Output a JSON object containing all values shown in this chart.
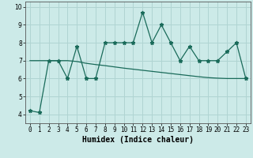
{
  "xlabel": "Humidex (Indice chaleur)",
  "x_values": [
    0,
    1,
    2,
    3,
    4,
    5,
    6,
    7,
    8,
    9,
    10,
    11,
    12,
    13,
    14,
    15,
    16,
    17,
    18,
    19,
    20,
    21,
    22,
    23
  ],
  "y_zigzag": [
    4.2,
    4.1,
    7.0,
    7.0,
    6.0,
    7.8,
    6.0,
    6.0,
    8.0,
    8.0,
    8.0,
    8.0,
    9.7,
    8.0,
    9.0,
    8.0,
    7.0,
    7.8,
    7.0,
    7.0,
    7.0,
    7.5,
    8.0,
    6.0
  ],
  "y_trend": [
    7.0,
    7.0,
    7.0,
    7.0,
    7.0,
    6.95,
    6.85,
    6.78,
    6.72,
    6.65,
    6.58,
    6.52,
    6.46,
    6.4,
    6.34,
    6.28,
    6.22,
    6.16,
    6.1,
    6.05,
    6.02,
    6.0,
    6.0,
    6.0
  ],
  "line_color": "#1a6b5a",
  "marker": "*",
  "bg_color": "#cceae8",
  "grid_color": "#b0d4d2",
  "ylim": [
    3.5,
    10.3
  ],
  "xlim": [
    -0.5,
    23.5
  ],
  "yticks": [
    4,
    5,
    6,
    7,
    8,
    9,
    10
  ],
  "xticks": [
    0,
    1,
    2,
    3,
    4,
    5,
    6,
    7,
    8,
    9,
    10,
    11,
    12,
    13,
    14,
    15,
    16,
    17,
    18,
    19,
    20,
    21,
    22,
    23
  ],
  "xtick_labels": [
    "0",
    "1",
    "2",
    "3",
    "4",
    "5",
    "6",
    "7",
    "8",
    "9",
    "10",
    "11",
    "12",
    "13",
    "14",
    "15",
    "16",
    "17",
    "18",
    "19",
    "20",
    "21",
    "22",
    "23"
  ],
  "fontsize_label": 7,
  "fontsize_tick": 5.5
}
